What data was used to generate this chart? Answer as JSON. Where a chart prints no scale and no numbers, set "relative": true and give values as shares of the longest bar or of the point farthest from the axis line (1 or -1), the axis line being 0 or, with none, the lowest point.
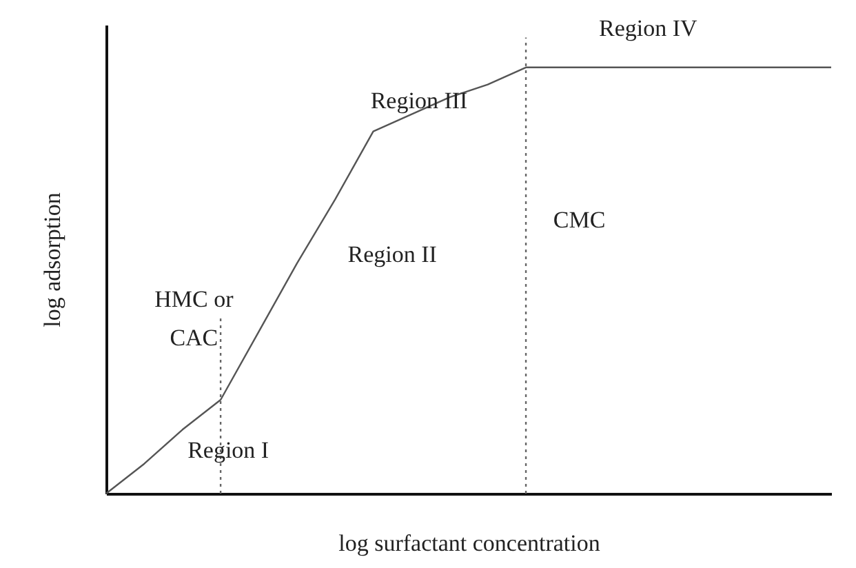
{
  "chart_data": {
    "type": "line",
    "relative": true,
    "xlabel": "log surfactant concentration",
    "ylabel": "log adsorption",
    "categories": [
      null,
      null,
      null,
      null,
      null,
      null,
      null,
      null,
      null,
      null,
      null,
      null,
      null,
      null,
      null,
      null,
      null,
      null,
      null,
      null
    ],
    "series": [
      {
        "color": "#555555",
        "values": [
          0,
          0.07,
          0.15,
          0.22,
          0.38,
          0.54,
          0.69,
          0.85,
          0.89,
          0.93,
          0.96,
          1,
          1,
          1,
          1,
          1,
          1,
          1,
          1,
          1
        ]
      }
    ],
    "annotations": [
      "Region I",
      "Region II",
      "Region III",
      "Region IV",
      "HMC or CAC",
      "CMC"
    ],
    "marker": "none",
    "line_style": "solid"
  }
}
